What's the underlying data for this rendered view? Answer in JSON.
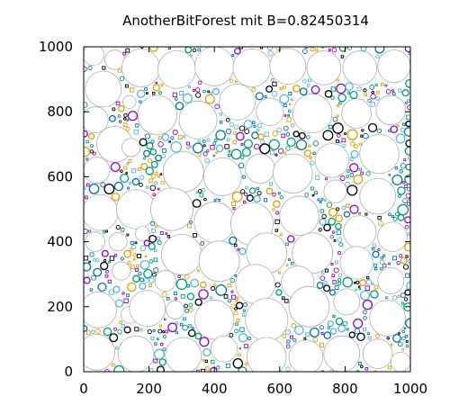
{
  "chart_data": {
    "type": "scatter",
    "title": "AnotherBitForest mit B=0.82450314",
    "xlabel": "",
    "ylabel": "",
    "xlim": [
      0,
      1000
    ],
    "ylim": [
      0,
      1000
    ],
    "x_ticks": [
      0,
      200,
      400,
      600,
      800,
      1000
    ],
    "y_ticks": [
      0,
      200,
      400,
      600,
      800,
      1000
    ],
    "x_tick_labels": [
      "0",
      "200",
      "400",
      "600",
      "800",
      "1000"
    ],
    "y_tick_labels": [
      "0",
      "200",
      "400",
      "600",
      "800",
      "1000"
    ],
    "grid": false,
    "legend": "none",
    "large_circle_color": "#b0b0b0",
    "small_circle_colors": [
      "#9400d3",
      "#009e73",
      "#56b4e9",
      "#e69f00",
      "#0072b2",
      "#000000"
    ],
    "circles": [
      [
        30,
        975,
        32
      ],
      [
        95,
        960,
        30
      ],
      [
        175,
        935,
        58
      ],
      [
        285,
        930,
        58
      ],
      [
        400,
        940,
        60
      ],
      [
        515,
        935,
        58
      ],
      [
        625,
        940,
        55
      ],
      [
        735,
        935,
        52
      ],
      [
        845,
        935,
        52
      ],
      [
        950,
        940,
        50
      ],
      [
        60,
        870,
        55
      ],
      [
        140,
        830,
        20
      ],
      [
        225,
        790,
        60
      ],
      [
        350,
        775,
        58
      ],
      [
        470,
        830,
        55
      ],
      [
        570,
        800,
        42
      ],
      [
        700,
        795,
        60
      ],
      [
        835,
        795,
        45
      ],
      [
        940,
        805,
        45
      ],
      [
        35,
        775,
        40
      ],
      [
        95,
        700,
        55
      ],
      [
        145,
        690,
        28
      ],
      [
        305,
        615,
        62
      ],
      [
        425,
        600,
        58
      ],
      [
        540,
        625,
        45
      ],
      [
        640,
        610,
        60
      ],
      [
        760,
        650,
        52
      ],
      [
        905,
        670,
        60
      ],
      [
        40,
        620,
        40
      ],
      [
        50,
        490,
        55
      ],
      [
        160,
        500,
        60
      ],
      [
        270,
        500,
        65
      ],
      [
        400,
        460,
        62
      ],
      [
        515,
        455,
        65
      ],
      [
        660,
        480,
        60
      ],
      [
        770,
        555,
        35
      ],
      [
        900,
        540,
        55
      ],
      [
        35,
        400,
        30
      ],
      [
        105,
        400,
        28
      ],
      [
        180,
        425,
        22
      ],
      [
        300,
        360,
        62
      ],
      [
        415,
        340,
        62
      ],
      [
        560,
        365,
        62
      ],
      [
        700,
        365,
        62
      ],
      [
        845,
        430,
        50
      ],
      [
        945,
        415,
        45
      ],
      [
        115,
        310,
        28
      ],
      [
        250,
        280,
        32
      ],
      [
        525,
        270,
        60
      ],
      [
        655,
        275,
        50
      ],
      [
        835,
        335,
        50
      ],
      [
        940,
        280,
        40
      ],
      [
        45,
        190,
        55
      ],
      [
        140,
        175,
        26
      ],
      [
        195,
        195,
        55
      ],
      [
        280,
        190,
        28
      ],
      [
        400,
        160,
        60
      ],
      [
        560,
        160,
        65
      ],
      [
        690,
        200,
        62
      ],
      [
        805,
        215,
        40
      ],
      [
        930,
        165,
        55
      ],
      [
        40,
        60,
        55
      ],
      [
        160,
        55,
        55
      ],
      [
        305,
        50,
        55
      ],
      [
        430,
        70,
        40
      ],
      [
        560,
        45,
        60
      ],
      [
        680,
        45,
        52
      ],
      [
        790,
        55,
        55
      ],
      [
        900,
        55,
        45
      ],
      [
        970,
        30,
        30
      ]
    ],
    "point_summary": "dense fill of small multi-colored circles and squares in the gaps between the large circles",
    "plot_region": [
      0,
      1000,
      0,
      1000
    ]
  }
}
